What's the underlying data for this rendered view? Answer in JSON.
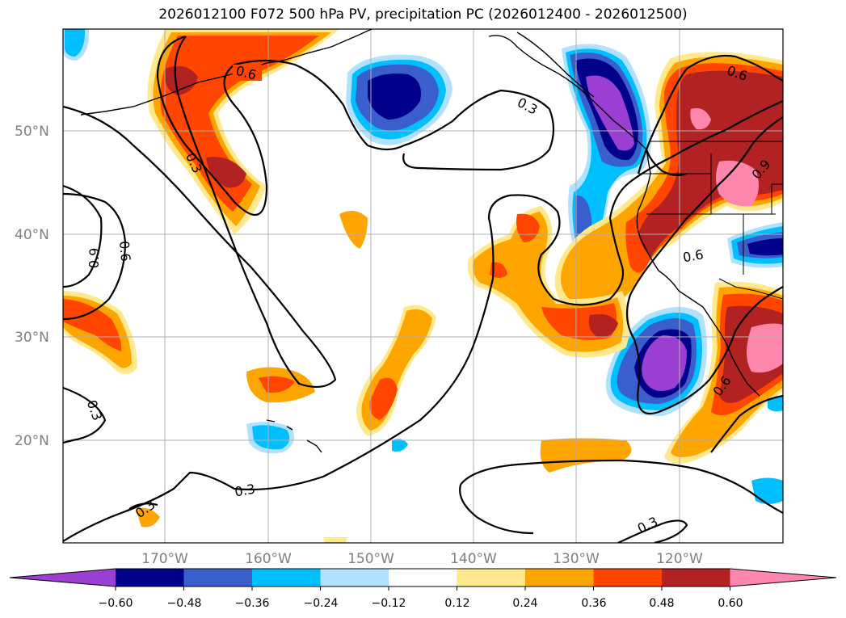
{
  "title": "2026012100 F072 500 hPa PV, precipitation PC (2026012400 - 2026012500)",
  "lat_labels": [
    "50°N",
    "40°N",
    "30°N",
    "20°N"
  ],
  "lon_labels": [
    "170°W",
    "160°W",
    "150°W",
    "140°W",
    "130°W",
    "120°W"
  ],
  "contour_labels": [
    "0.6",
    "0.3",
    "0.9",
    "0.6",
    "0.3",
    "0.6",
    "0.9",
    "0.6",
    "0.6",
    "0.3",
    "0.3",
    "0.3",
    "0.3"
  ],
  "colorbar": {
    "ticks": [
      "−0.60",
      "−0.48",
      "−0.36",
      "−0.24",
      "−0.12",
      "0.12",
      "0.24",
      "0.36",
      "0.48",
      "0.60"
    ],
    "colors": [
      "#9a3fd1",
      "#00008b",
      "#3a5fcd",
      "#00bfff",
      "#b0e2ff",
      "#ffffff",
      "#ffe98c",
      "#ffa500",
      "#ff4500",
      "#b22222",
      "#ff86ac"
    ]
  }
}
